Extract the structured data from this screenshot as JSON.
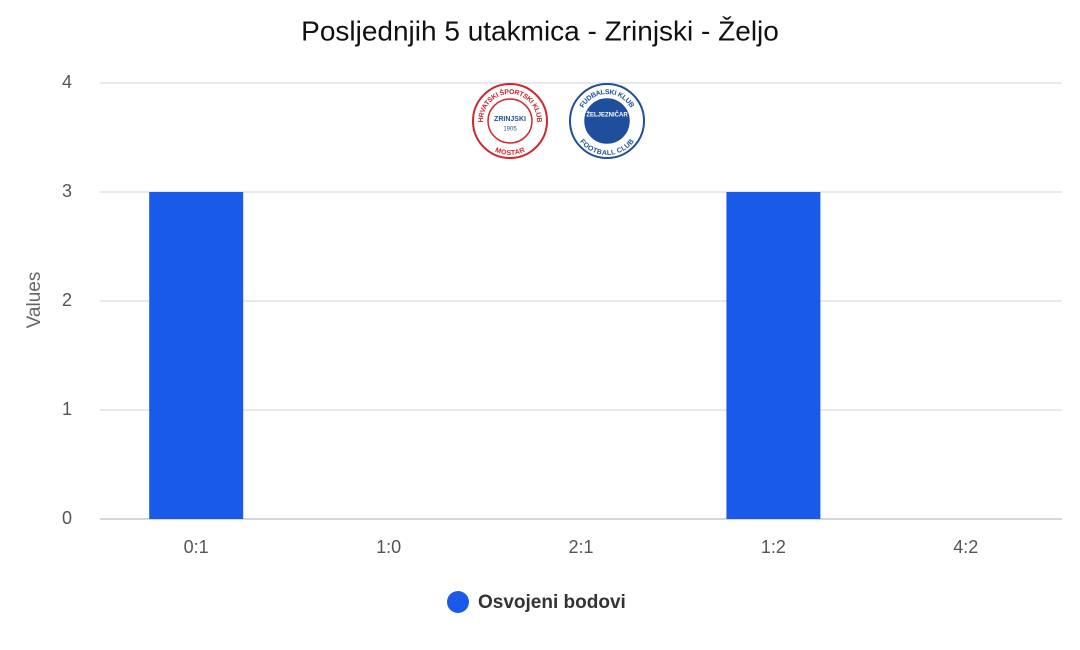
{
  "chart_data": {
    "type": "bar",
    "title": "Posljednjih 5 utakmica - Zrinjski - Željo",
    "categories": [
      "0:1",
      "1:0",
      "2:1",
      "1:2",
      "4:2"
    ],
    "series": [
      {
        "name": "Osvojeni bodovi",
        "color": "#1a5ae8",
        "values": [
          3,
          0,
          0,
          3,
          0
        ]
      }
    ],
    "y_label": "Values",
    "ylim": [
      0,
      4
    ],
    "yticks": [
      0,
      1,
      2,
      3,
      4
    ],
    "grid": true,
    "legend": "bottom",
    "logos": [
      {
        "ring": "HRVATSKI ŠPORTSKI KLUB",
        "name": "ZRINJSKI",
        "year": "1905",
        "bottom": "MOSTAR",
        "color": "#d0262d"
      },
      {
        "ring": "FUDBALSKI KLUB",
        "name": "ŽELJEZNIČAR",
        "bottom": "FOOTBALL CLUB",
        "color": "#1f4e9c"
      }
    ]
  }
}
